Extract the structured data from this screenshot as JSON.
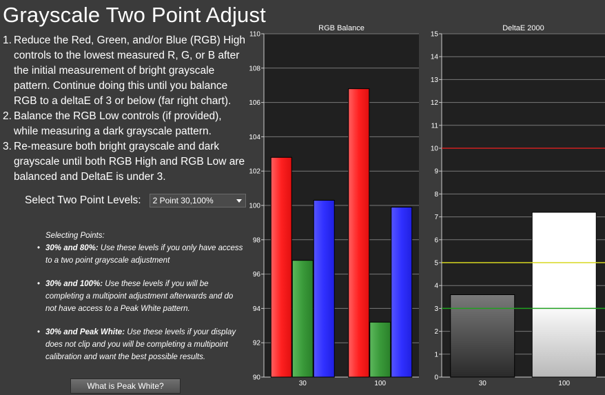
{
  "title": "Grayscale Two Point Adjust",
  "steps": [
    {
      "num": "1.",
      "text": "Reduce the Red, Green, and/or Blue (RGB) High controls to the lowest measured R, G, or B after the initial measurement of bright grayscale pattern. Continue doing this until you balance RGB to a deltaE of 3 or below (far right chart)."
    },
    {
      "num": "2.",
      "text": "Balance the RGB Low controls (if provided), while measuring a dark grayscale pattern."
    },
    {
      "num": "3.",
      "text": "Re-measure both bright grayscale and dark grayscale until both RGB High and RGB Low are balanced and DeltaE is under 3."
    }
  ],
  "select": {
    "label": "Select Two Point Levels:",
    "value": "2 Point 30,100%"
  },
  "selecting_points": {
    "header": "Selecting Points:",
    "items": [
      {
        "bold": "30% and 80%:",
        "text": " Use these levels if you only have access to a two point grayscale adjustment"
      },
      {
        "bold": "30% and 100%:",
        "text": " Use these levels if you will be completing a multipoint adjustment afterwards and do not have access to a Peak White pattern."
      },
      {
        "bold": "30% and Peak White:",
        "text": " Use these levels if your display does not clip and you will be completing a multipoint calibration and want the best possible results."
      }
    ]
  },
  "peak_button": "What is Peak White?",
  "chart_data": [
    {
      "type": "bar",
      "title": "RGB Balance",
      "categories": [
        "30",
        "100"
      ],
      "series": [
        {
          "color": "#ff3030",
          "values": [
            102.8,
            106.8
          ]
        },
        {
          "color": "#3aa03a",
          "values": [
            96.8,
            93.2
          ]
        },
        {
          "color": "#3535ff",
          "values": [
            100.3,
            99.9
          ]
        }
      ],
      "ylim": [
        90,
        110
      ],
      "yticks": [
        "90",
        "92",
        "94",
        "96",
        "98",
        "100",
        "102",
        "104",
        "106",
        "108",
        "110"
      ]
    },
    {
      "type": "bar",
      "title": "DeltaE 2000",
      "categories": [
        "30",
        "100"
      ],
      "values": [
        3.6,
        7.2
      ],
      "bar_colors": [
        "gray-gradient",
        "white-gradient"
      ],
      "ylim": [
        0,
        15
      ],
      "yticks": [
        "0",
        "1",
        "2",
        "3",
        "4",
        "5",
        "6",
        "7",
        "8",
        "9",
        "10",
        "11",
        "12",
        "13",
        "14",
        "15"
      ],
      "reference_lines": [
        {
          "value": 10,
          "color": "#d02020"
        },
        {
          "value": 5,
          "color": "#d8d820"
        },
        {
          "value": 3,
          "color": "#20a020"
        }
      ]
    }
  ]
}
